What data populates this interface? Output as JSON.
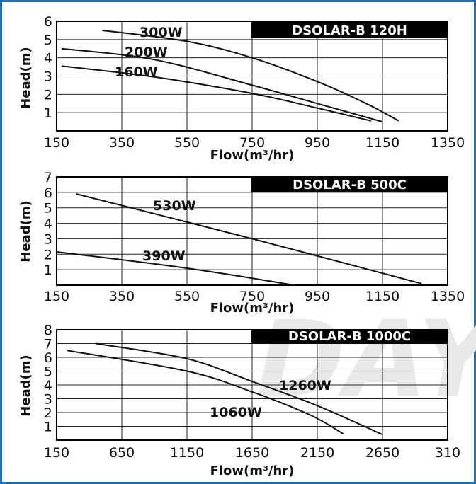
{
  "watermark": "DAY",
  "chart_data": [
    {
      "type": "line",
      "title": "DSOLAR-B 120H",
      "xlabel": "Flow(m³/hr)",
      "ylabel": "Head(m)",
      "xlim": [
        150,
        1350
      ],
      "ylim": [
        0,
        6
      ],
      "xticks": [
        "150",
        "350",
        "550",
        "750",
        "950",
        "1150",
        "1350"
      ],
      "yticks": [
        "1",
        "2",
        "3",
        "4",
        "5",
        "6"
      ],
      "grid": true,
      "series": [
        {
          "name": "300W",
          "x": [
            290,
            550,
            750,
            950,
            1100,
            1200
          ],
          "y": [
            5.5,
            4.9,
            4.0,
            2.7,
            1.5,
            0.55
          ]
        },
        {
          "name": "200W",
          "x": [
            165,
            450,
            750,
            950,
            1150
          ],
          "y": [
            4.5,
            3.9,
            2.5,
            1.5,
            0.5
          ]
        },
        {
          "name": "160W",
          "x": [
            165,
            450,
            750,
            950,
            1115
          ],
          "y": [
            3.55,
            2.95,
            2.05,
            1.25,
            0.55
          ]
        }
      ],
      "annotations": [
        "300W",
        "200W",
        "160W"
      ]
    },
    {
      "type": "line",
      "title": "DSOLAR-B 500C",
      "xlabel": "Flow(m³/hr)",
      "ylabel": "Head(m)",
      "xlim": [
        150,
        1350
      ],
      "ylim": [
        0,
        7
      ],
      "xticks": [
        "150",
        "350",
        "550",
        "750",
        "950",
        "1150",
        "1350"
      ],
      "yticks": [
        "1",
        "2",
        "3",
        "4",
        "5",
        "6",
        "7"
      ],
      "grid": true,
      "series": [
        {
          "name": "530W",
          "x": [
            210,
            750,
            1270
          ],
          "y": [
            5.9,
            3.0,
            0.1
          ]
        },
        {
          "name": "390W",
          "x": [
            150,
            550,
            880
          ],
          "y": [
            2.15,
            1.1,
            0.0
          ]
        }
      ],
      "annotations": [
        "530W",
        "390W"
      ]
    },
    {
      "type": "line",
      "title": "DSOLAR-B 1000C",
      "xlabel": "Flow(m³/hr)",
      "ylabel": "Head(m)",
      "xlim": [
        150,
        3150
      ],
      "ylim": [
        0,
        8
      ],
      "xticks": [
        "150",
        "650",
        "1150",
        "1650",
        "2150",
        "2650",
        "310"
      ],
      "yticks": [
        "1",
        "2",
        "3",
        "4",
        "5",
        "6",
        "7",
        "8"
      ],
      "grid": true,
      "series": [
        {
          "name": "1260W",
          "x": [
            450,
            1150,
            1650,
            2150,
            2650
          ],
          "y": [
            7.0,
            5.9,
            4.25,
            2.5,
            0.4
          ]
        },
        {
          "name": "1060W",
          "x": [
            230,
            1150,
            1650,
            2100,
            2350
          ],
          "y": [
            6.5,
            5.0,
            3.5,
            1.8,
            0.45
          ]
        }
      ],
      "annotations": [
        "1260W",
        "1060W"
      ]
    }
  ]
}
